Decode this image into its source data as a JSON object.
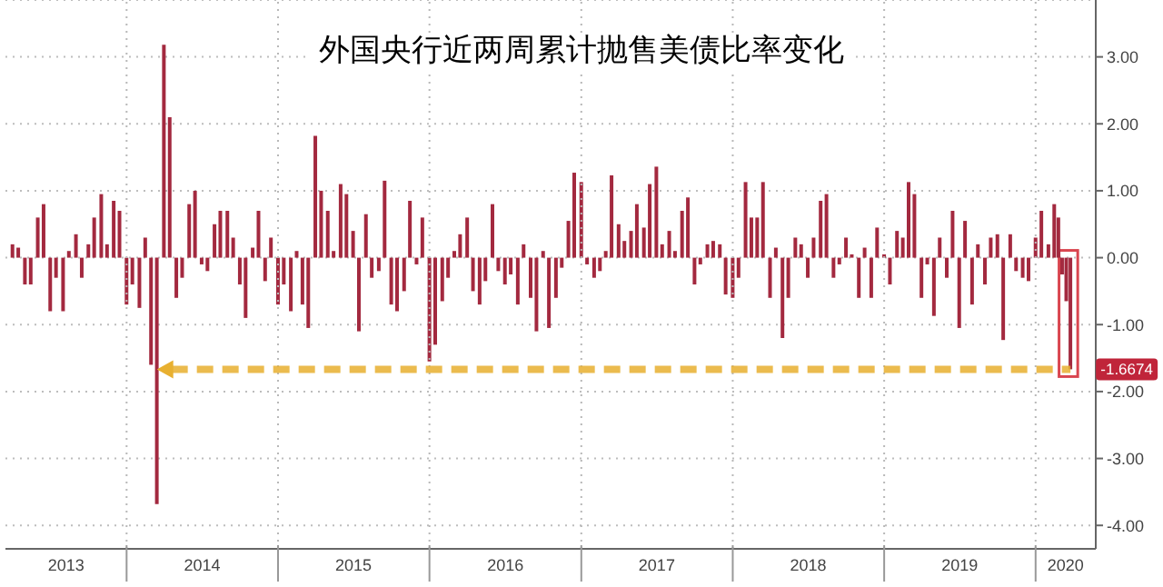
{
  "chart_data": {
    "type": "bar",
    "title": "外国央行近两周累计抛售美债比率变化",
    "x": [
      "2013-04-01",
      "2013-04-15",
      "2013-05-01",
      "2013-05-15",
      "2013-06-01",
      "2013-06-15",
      "2013-07-01",
      "2013-07-15",
      "2013-08-01",
      "2013-08-15",
      "2013-09-01",
      "2013-09-15",
      "2013-10-01",
      "2013-10-15",
      "2013-11-01",
      "2013-11-15",
      "2013-12-01",
      "2013-12-15",
      "2014-01-01",
      "2014-01-15",
      "2014-02-01",
      "2014-02-15",
      "2014-03-01",
      "2014-03-15",
      "2014-04-01",
      "2014-04-15",
      "2014-05-01",
      "2014-05-15",
      "2014-06-01",
      "2014-06-15",
      "2014-07-01",
      "2014-07-15",
      "2014-08-01",
      "2014-08-15",
      "2014-09-01",
      "2014-09-15",
      "2014-10-01",
      "2014-10-15",
      "2014-11-01",
      "2014-11-15",
      "2014-12-01",
      "2014-12-15",
      "2015-01-01",
      "2015-01-15",
      "2015-02-01",
      "2015-02-15",
      "2015-03-01",
      "2015-03-15",
      "2015-04-01",
      "2015-04-15",
      "2015-05-01",
      "2015-05-15",
      "2015-06-01",
      "2015-06-15",
      "2015-07-01",
      "2015-07-15",
      "2015-08-01",
      "2015-08-15",
      "2015-09-01",
      "2015-09-15",
      "2015-10-01",
      "2015-10-15",
      "2015-11-01",
      "2015-11-15",
      "2015-12-01",
      "2015-12-15",
      "2016-01-01",
      "2016-01-15",
      "2016-02-01",
      "2016-02-15",
      "2016-03-01",
      "2016-03-15",
      "2016-04-01",
      "2016-04-15",
      "2016-05-01",
      "2016-05-15",
      "2016-06-01",
      "2016-06-15",
      "2016-07-01",
      "2016-07-15",
      "2016-08-01",
      "2016-08-15",
      "2016-09-01",
      "2016-09-15",
      "2016-10-01",
      "2016-10-15",
      "2016-11-01",
      "2016-11-15",
      "2016-12-01",
      "2016-12-15",
      "2017-01-01",
      "2017-01-15",
      "2017-02-01",
      "2017-02-15",
      "2017-03-01",
      "2017-03-15",
      "2017-04-01",
      "2017-04-15",
      "2017-05-01",
      "2017-05-15",
      "2017-06-01",
      "2017-06-15",
      "2017-07-01",
      "2017-07-15",
      "2017-08-01",
      "2017-08-15",
      "2017-09-01",
      "2017-09-15",
      "2017-10-01",
      "2017-10-15",
      "2017-11-01",
      "2017-11-15",
      "2017-12-01",
      "2017-12-15",
      "2018-01-01",
      "2018-01-15",
      "2018-02-01",
      "2018-02-15",
      "2018-03-01",
      "2018-03-15",
      "2018-04-01",
      "2018-04-15",
      "2018-05-01",
      "2018-05-15",
      "2018-06-01",
      "2018-06-15",
      "2018-07-01",
      "2018-07-15",
      "2018-08-01",
      "2018-08-15",
      "2018-09-01",
      "2018-09-15",
      "2018-10-01",
      "2018-10-15",
      "2018-11-01",
      "2018-11-15",
      "2018-12-01",
      "2018-12-15",
      "2019-01-01",
      "2019-01-15",
      "2019-02-01",
      "2019-02-15",
      "2019-03-01",
      "2019-03-15",
      "2019-04-01",
      "2019-04-15",
      "2019-05-01",
      "2019-05-15",
      "2019-06-01",
      "2019-06-15",
      "2019-07-01",
      "2019-07-15",
      "2019-08-01",
      "2019-08-15",
      "2019-09-01",
      "2019-09-15",
      "2019-10-01",
      "2019-10-15",
      "2019-11-01",
      "2019-11-15",
      "2019-12-01",
      "2019-12-15",
      "2020-01-01",
      "2020-01-15",
      "2020-02-01",
      "2020-02-15",
      "2020-02-25",
      "2020-03-05",
      "2020-03-15",
      "2020-03-25"
    ],
    "values": [
      0.2,
      0.15,
      -0.4,
      -0.4,
      0.6,
      0.8,
      -0.8,
      -0.3,
      -0.8,
      0.1,
      0.35,
      -0.3,
      0.2,
      0.6,
      0.95,
      0.2,
      0.85,
      0.7,
      -0.7,
      -0.4,
      -0.75,
      0.3,
      -1.6,
      -3.68,
      3.18,
      2.1,
      -0.6,
      -0.3,
      0.8,
      1.0,
      -0.1,
      -0.2,
      0.5,
      0.7,
      0.7,
      0.3,
      -0.4,
      -0.9,
      0.15,
      0.7,
      -0.35,
      0.3,
      -0.7,
      -0.4,
      -0.8,
      0.1,
      -0.7,
      -1.05,
      1.82,
      1.0,
      0.7,
      0.1,
      1.1,
      0.95,
      0.4,
      -1.1,
      0.65,
      -0.3,
      -0.2,
      1.15,
      -0.7,
      -0.8,
      -0.5,
      0.85,
      -0.1,
      0.6,
      -1.55,
      -1.3,
      -0.65,
      -0.3,
      0.1,
      0.35,
      0.6,
      -0.5,
      -0.7,
      -0.35,
      0.8,
      -0.2,
      -0.4,
      -0.25,
      -0.7,
      0.2,
      -0.6,
      -1.1,
      0.1,
      -1.05,
      -0.6,
      -0.15,
      0.55,
      1.27,
      1.13,
      -0.1,
      -0.3,
      -0.2,
      0.1,
      1.23,
      0.5,
      0.25,
      0.4,
      0.8,
      0.45,
      1.1,
      1.36,
      0.2,
      0.4,
      0.1,
      0.7,
      0.9,
      -0.4,
      -0.1,
      0.2,
      0.25,
      0.2,
      -0.55,
      -0.6,
      -0.3,
      1.13,
      0.6,
      0.6,
      1.13,
      -0.6,
      0.15,
      -1.2,
      -0.6,
      0.3,
      0.2,
      -0.3,
      0.3,
      0.85,
      0.95,
      -0.3,
      -0.1,
      0.3,
      0.05,
      -0.6,
      0.15,
      -0.6,
      0.45,
      0.05,
      -0.4,
      0.4,
      0.3,
      1.13,
      0.95,
      -0.6,
      -0.1,
      -0.87,
      0.3,
      -0.3,
      0.7,
      -1.05,
      0.55,
      -0.7,
      0.2,
      -0.4,
      0.3,
      0.35,
      -1.23,
      0.35,
      -0.2,
      -0.3,
      -0.35,
      0.3,
      0.7,
      0.2,
      0.8,
      0.6,
      -0.25,
      -0.65,
      -1.6674
    ],
    "color": "#a3293f",
    "xlim": [
      "2013-03-15",
      "2020-05-25"
    ],
    "xticks": [
      {
        "value": "2013-08-08",
        "label": "2013"
      },
      {
        "value": "2014-01-01",
        "label": null
      },
      {
        "value": "2014-07-02",
        "label": "2014"
      },
      {
        "value": "2015-01-01",
        "label": null
      },
      {
        "value": "2015-07-02",
        "label": "2015"
      },
      {
        "value": "2016-01-01",
        "label": null
      },
      {
        "value": "2016-07-02",
        "label": "2016"
      },
      {
        "value": "2017-01-01",
        "label": null
      },
      {
        "value": "2017-07-02",
        "label": "2017"
      },
      {
        "value": "2018-01-01",
        "label": null
      },
      {
        "value": "2018-07-02",
        "label": "2018"
      },
      {
        "value": "2019-01-01",
        "label": null
      },
      {
        "value": "2019-07-02",
        "label": "2019"
      },
      {
        "value": "2020-01-01",
        "label": null
      },
      {
        "value": "2020-03-13",
        "label": "2020"
      }
    ],
    "ylim": [
      -4.35,
      3.85
    ],
    "yticks": [
      {
        "value": -4,
        "label": "-4.00"
      },
      {
        "value": -3,
        "label": "-3.00"
      },
      {
        "value": -2,
        "label": "-2.00"
      },
      {
        "value": -1,
        "label": "-1.00"
      },
      {
        "value": 0,
        "label": "0.00"
      },
      {
        "value": 1,
        "label": "1.00"
      },
      {
        "value": 2,
        "label": "2.00"
      },
      {
        "value": 3,
        "label": "3.00"
      }
    ],
    "grid": "y",
    "ref_lines": [
      {
        "axis": "x",
        "value": "2014-01-01",
        "color": "#b8b8b8",
        "line_style": "dotted"
      },
      {
        "axis": "x",
        "value": "2015-01-01",
        "color": "#b8b8b8",
        "line_style": "dotted"
      },
      {
        "axis": "x",
        "value": "2016-01-01",
        "color": "#b8b8b8",
        "line_style": "dotted"
      },
      {
        "axis": "x",
        "value": "2017-01-01",
        "color": "#b8b8b8",
        "line_style": "dotted"
      },
      {
        "axis": "x",
        "value": "2018-01-01",
        "color": "#b8b8b8",
        "line_style": "dotted"
      },
      {
        "axis": "x",
        "value": "2019-01-01",
        "color": "#b8b8b8",
        "line_style": "dotted"
      },
      {
        "axis": "x",
        "value": "2020-01-01",
        "color": "#b8b8b8",
        "line_style": "dotted"
      },
      {
        "axis": "y",
        "value": -1.6674,
        "color": "#e8b030",
        "line_style": "dashed"
      }
    ],
    "annotations": [
      {
        "text": "-1.6674",
        "x": "2020-03-25",
        "y": -1.6674
      }
    ]
  }
}
